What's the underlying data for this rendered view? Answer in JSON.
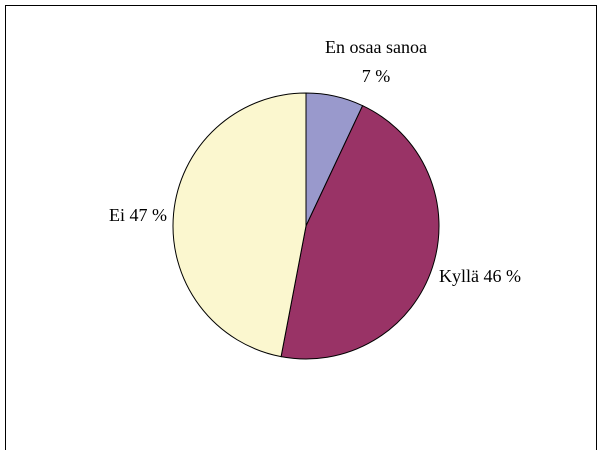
{
  "chart_data": {
    "type": "pie",
    "categories": [
      "En osaa sanoa",
      "Kyllä",
      "Ei"
    ],
    "values": [
      7,
      46,
      47
    ],
    "value_labels": [
      "7 %",
      "46 %",
      "47 %"
    ],
    "colors": [
      "#9999cc",
      "#993366",
      "#fbf7cf"
    ]
  }
}
